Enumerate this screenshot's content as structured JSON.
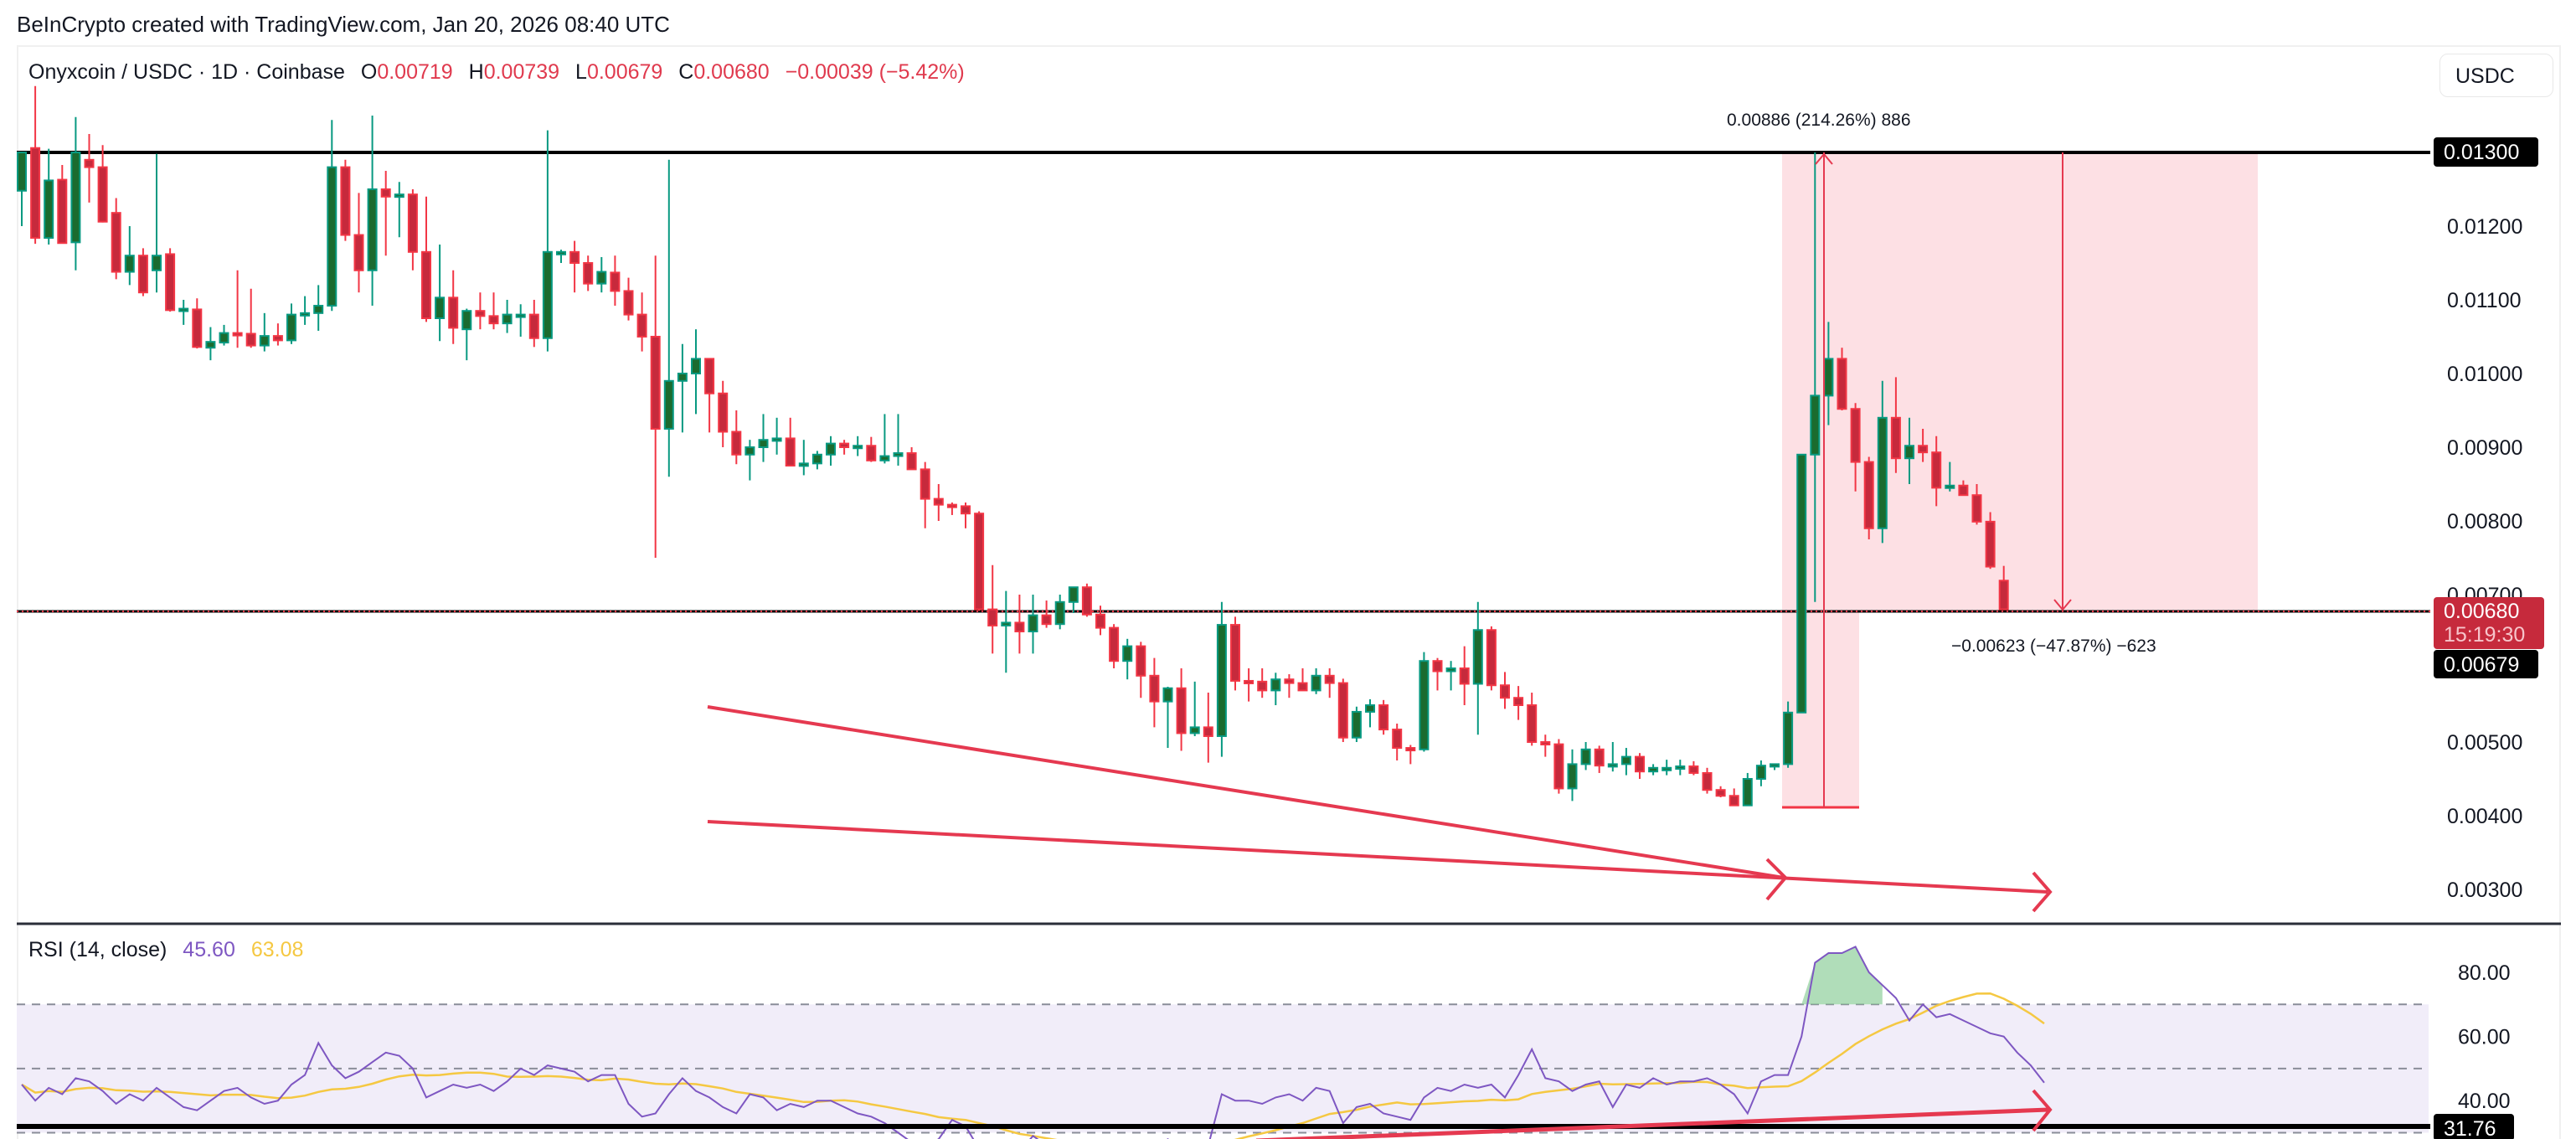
{
  "credit": "BeInCrypto created with TradingView.com, Jan 20, 2026 08:40 UTC",
  "symbol": {
    "title": "Onyxcoin / USDC · 1D · Coinbase",
    "open_label": "O",
    "open": "0.00719",
    "high_label": "H",
    "high": "0.00739",
    "low_label": "L",
    "low": "0.00679",
    "close_label": "C",
    "close": "0.00680",
    "change": "−0.00039 (−5.42%)"
  },
  "currency_button": "USDC",
  "colors": {
    "up": "#1b6b2f",
    "up_border": "#089981",
    "down": "#c62a3c",
    "down_border": "#f23645",
    "annotation": "#e53950",
    "range_fill": "#fde0e4",
    "rsi_line": "#7e57c2",
    "rsi_ma": "#f5c842",
    "rsi_band": "#f1edf9"
  },
  "price_axis": {
    "ticks": [
      "0.01200",
      "0.01100",
      "0.01000",
      "0.00900",
      "0.00800",
      "0.00700",
      "0.00500",
      "0.00400",
      "0.00300"
    ],
    "tick_values": [
      0.012,
      0.011,
      0.01,
      0.009,
      0.008,
      0.007,
      0.005,
      0.004,
      0.003
    ],
    "resistance_label": "0.01300",
    "last_price_label": "0.00680",
    "countdown": "15:19:30",
    "low_label": "0.00679"
  },
  "annotations": {
    "measure_up": "0.00886 (214.26%) 886",
    "measure_down": "−0.00623 (−47.87%) −623"
  },
  "rsi": {
    "label": "RSI (14, close)",
    "value": "45.60",
    "ma_value": "63.08",
    "ticks": [
      "80.00",
      "60.00",
      "40.00"
    ],
    "support_label": "31.76"
  },
  "chart_data": [
    {
      "type": "candlestick",
      "title": "Onyxcoin / USDC · 1D · Coinbase",
      "ylabel": "USDC",
      "ylim": [
        0.0025,
        0.014
      ],
      "horizontal_lines": [
        0.013,
        0.0068
      ],
      "price_range_tool": {
        "from": 0.00414,
        "to": 0.013,
        "change": "0.00886 (214.26%)"
      },
      "price_range_tool_2": {
        "from": 0.013,
        "to": 0.00677,
        "change": "−0.00623 (−47.87%)"
      },
      "trendlines": "two converging downward red lines with arrows (bullish divergence / falling wedge)",
      "candles_ohlc": [
        [
          0.01248,
          0.013,
          0.012,
          0.013
        ],
        [
          0.01306,
          0.0139,
          0.01176,
          0.01184
        ],
        [
          0.01184,
          0.01305,
          0.01175,
          0.01262
        ],
        [
          0.01263,
          0.01283,
          0.01177,
          0.01177
        ],
        [
          0.01178,
          0.01348,
          0.0114,
          0.013
        ],
        [
          0.0129,
          0.01325,
          0.01232,
          0.0128
        ],
        [
          0.0128,
          0.0131,
          0.01205,
          0.01206
        ],
        [
          0.01218,
          0.01238,
          0.01128,
          0.01138
        ],
        [
          0.01138,
          0.012,
          0.0112,
          0.0116
        ],
        [
          0.0116,
          0.0117,
          0.01105,
          0.0111
        ],
        [
          0.0114,
          0.01298,
          0.0111,
          0.0116
        ],
        [
          0.01162,
          0.0117,
          0.01084,
          0.01086
        ],
        [
          0.01086,
          0.011,
          0.01066,
          0.01088
        ],
        [
          0.01087,
          0.01102,
          0.01034,
          0.01036
        ],
        [
          0.01035,
          0.01063,
          0.01018,
          0.01043
        ],
        [
          0.01042,
          0.01066,
          0.01038,
          0.01055
        ],
        [
          0.01055,
          0.0114,
          0.01035,
          0.01054
        ],
        [
          0.01054,
          0.01115,
          0.01035,
          0.01038
        ],
        [
          0.01038,
          0.01082,
          0.0103,
          0.01051
        ],
        [
          0.01051,
          0.01068,
          0.01038,
          0.01045
        ],
        [
          0.01045,
          0.01095,
          0.0104,
          0.0108
        ],
        [
          0.0108,
          0.01105,
          0.01066,
          0.01082
        ],
        [
          0.01082,
          0.0112,
          0.01058,
          0.01092
        ],
        [
          0.01092,
          0.01344,
          0.01085,
          0.0128
        ],
        [
          0.0128,
          0.0129,
          0.0118,
          0.01188
        ],
        [
          0.01188,
          0.01245,
          0.0111,
          0.0114
        ],
        [
          0.0114,
          0.0135,
          0.01092,
          0.0125
        ],
        [
          0.0125,
          0.01275,
          0.0116,
          0.0124
        ],
        [
          0.01242,
          0.0126,
          0.01185,
          0.01243
        ],
        [
          0.01243,
          0.0125,
          0.0114,
          0.01165
        ],
        [
          0.01165,
          0.0124,
          0.0107,
          0.01075
        ],
        [
          0.01075,
          0.01175,
          0.01044,
          0.01103
        ],
        [
          0.01103,
          0.0114,
          0.0104,
          0.01062
        ],
        [
          0.0106,
          0.01088,
          0.01018,
          0.01085
        ],
        [
          0.01085,
          0.0111,
          0.0106,
          0.01078
        ],
        [
          0.01078,
          0.0111,
          0.0106,
          0.01068
        ],
        [
          0.01068,
          0.011,
          0.01055,
          0.0108
        ],
        [
          0.0108,
          0.01094,
          0.0105,
          0.0108
        ],
        [
          0.0108,
          0.011,
          0.01036,
          0.01048
        ],
        [
          0.01048,
          0.0133,
          0.0103,
          0.01165
        ],
        [
          0.01165,
          0.01168,
          0.0115,
          0.01165
        ],
        [
          0.01165,
          0.0118,
          0.0111,
          0.0115
        ],
        [
          0.0115,
          0.0116,
          0.01112,
          0.01122
        ],
        [
          0.01122,
          0.01158,
          0.0111,
          0.01138
        ],
        [
          0.01137,
          0.0116,
          0.01092,
          0.01112
        ],
        [
          0.01112,
          0.0113,
          0.01072,
          0.0108
        ],
        [
          0.0108,
          0.0111,
          0.0103,
          0.0105
        ],
        [
          0.0105,
          0.0116,
          0.0075,
          0.00925
        ],
        [
          0.00925,
          0.0129,
          0.0086,
          0.0099
        ],
        [
          0.0099,
          0.0104,
          0.0092,
          0.01
        ],
        [
          0.01,
          0.0106,
          0.00945,
          0.0102
        ],
        [
          0.0102,
          0.0102,
          0.0092,
          0.00973
        ],
        [
          0.00973,
          0.0099,
          0.009,
          0.00921
        ],
        [
          0.00921,
          0.0095,
          0.00877,
          0.0089
        ],
        [
          0.0089,
          0.0091,
          0.00855,
          0.009
        ],
        [
          0.009,
          0.00945,
          0.0088,
          0.0091
        ],
        [
          0.0091,
          0.0094,
          0.0089,
          0.00912
        ],
        [
          0.00912,
          0.0094,
          0.00874,
          0.00875
        ],
        [
          0.00875,
          0.0091,
          0.00862,
          0.00878
        ],
        [
          0.00878,
          0.00895,
          0.0087,
          0.0089
        ],
        [
          0.0089,
          0.00915,
          0.00875,
          0.00905
        ],
        [
          0.00905,
          0.0091,
          0.0089,
          0.009
        ],
        [
          0.009,
          0.00915,
          0.00888,
          0.00902
        ],
        [
          0.00902,
          0.00914,
          0.0088,
          0.00882
        ],
        [
          0.00882,
          0.00945,
          0.00878,
          0.00888
        ],
        [
          0.00888,
          0.00945,
          0.00875,
          0.00892
        ],
        [
          0.00892,
          0.009,
          0.0087,
          0.0087
        ],
        [
          0.0087,
          0.0088,
          0.0079,
          0.0083
        ],
        [
          0.0083,
          0.0085,
          0.008,
          0.00822
        ],
        [
          0.00822,
          0.00825,
          0.00808,
          0.0082
        ],
        [
          0.0082,
          0.00825,
          0.0079,
          0.0081
        ],
        [
          0.0081,
          0.00813,
          0.00678,
          0.0068
        ],
        [
          0.0068,
          0.0074,
          0.0062,
          0.00658
        ],
        [
          0.00658,
          0.00705,
          0.00594,
          0.00662
        ],
        [
          0.00662,
          0.007,
          0.0062,
          0.0065
        ],
        [
          0.0065,
          0.007,
          0.0062,
          0.00672
        ],
        [
          0.00672,
          0.00692,
          0.00655,
          0.0066
        ],
        [
          0.0066,
          0.007,
          0.00653,
          0.0069
        ],
        [
          0.0069,
          0.0071,
          0.00675,
          0.0071
        ],
        [
          0.0071,
          0.00715,
          0.0067,
          0.00673
        ],
        [
          0.00673,
          0.00685,
          0.00645,
          0.00655
        ],
        [
          0.00655,
          0.0066,
          0.006,
          0.0061
        ],
        [
          0.0061,
          0.0064,
          0.00585,
          0.0063
        ],
        [
          0.0063,
          0.00636,
          0.0056,
          0.0059
        ],
        [
          0.0059,
          0.00614,
          0.0052,
          0.00555
        ],
        [
          0.00555,
          0.00575,
          0.00492,
          0.00573
        ],
        [
          0.00573,
          0.006,
          0.00488,
          0.00512
        ],
        [
          0.00512,
          0.00582,
          0.00508,
          0.0052
        ],
        [
          0.0052,
          0.00567,
          0.00472,
          0.00508
        ],
        [
          0.00508,
          0.0069,
          0.0048,
          0.00659
        ],
        [
          0.00659,
          0.0067,
          0.0057,
          0.00583
        ],
        [
          0.00583,
          0.006,
          0.00555,
          0.00582
        ],
        [
          0.00582,
          0.006,
          0.0056,
          0.0057
        ],
        [
          0.0057,
          0.00594,
          0.0055,
          0.00585
        ],
        [
          0.00585,
          0.00592,
          0.0056,
          0.0058
        ],
        [
          0.0058,
          0.006,
          0.0057,
          0.0057
        ],
        [
          0.0057,
          0.006,
          0.00565,
          0.0059
        ],
        [
          0.0059,
          0.006,
          0.0056,
          0.0058
        ],
        [
          0.0058,
          0.00586,
          0.005,
          0.00506
        ],
        [
          0.00506,
          0.00548,
          0.005,
          0.00541
        ],
        [
          0.00541,
          0.00558,
          0.0052,
          0.0055
        ],
        [
          0.0055,
          0.00557,
          0.0051,
          0.00517
        ],
        [
          0.00517,
          0.00525,
          0.00475,
          0.00492
        ],
        [
          0.00492,
          0.00496,
          0.0047,
          0.0049
        ],
        [
          0.0049,
          0.00622,
          0.00487,
          0.0061
        ],
        [
          0.0061,
          0.00614,
          0.0057,
          0.00596
        ],
        [
          0.00596,
          0.0061,
          0.0057,
          0.006
        ],
        [
          0.006,
          0.0063,
          0.0055,
          0.00579
        ],
        [
          0.00579,
          0.0069,
          0.0051,
          0.00652
        ],
        [
          0.00652,
          0.00657,
          0.0057,
          0.00577
        ],
        [
          0.00577,
          0.00595,
          0.00545,
          0.0056
        ],
        [
          0.0056,
          0.00576,
          0.0053,
          0.0055
        ],
        [
          0.0055,
          0.00567,
          0.00495,
          0.005
        ],
        [
          0.005,
          0.0051,
          0.0048,
          0.00497
        ],
        [
          0.00497,
          0.00504,
          0.0043,
          0.00437
        ],
        [
          0.00437,
          0.0049,
          0.0042,
          0.0047
        ],
        [
          0.0047,
          0.005,
          0.00462,
          0.0049
        ],
        [
          0.0049,
          0.00495,
          0.00458,
          0.00468
        ],
        [
          0.00468,
          0.005,
          0.0046,
          0.0047
        ],
        [
          0.0047,
          0.00492,
          0.00455,
          0.0048
        ],
        [
          0.0048,
          0.00485,
          0.0045,
          0.0046
        ],
        [
          0.0046,
          0.0047,
          0.00455,
          0.00465
        ],
        [
          0.00465,
          0.00476,
          0.00455,
          0.00465
        ],
        [
          0.00465,
          0.00476,
          0.00455,
          0.00467
        ],
        [
          0.00467,
          0.00474,
          0.00455,
          0.00458
        ],
        [
          0.00458,
          0.00465,
          0.0043,
          0.00435
        ],
        [
          0.00435,
          0.0044,
          0.00425,
          0.00427
        ],
        [
          0.00427,
          0.00437,
          0.00414,
          0.00414
        ],
        [
          0.00414,
          0.00458,
          0.00414,
          0.0045
        ],
        [
          0.0045,
          0.00475,
          0.0044,
          0.00468
        ],
        [
          0.00468,
          0.0047,
          0.00462,
          0.0047
        ],
        [
          0.0047,
          0.00555,
          0.00465,
          0.0054
        ],
        [
          0.0054,
          0.0066,
          0.0054,
          0.0089
        ],
        [
          0.0089,
          0.013,
          0.0069,
          0.0097
        ],
        [
          0.0097,
          0.0107,
          0.0093,
          0.0102
        ],
        [
          0.0102,
          0.01035,
          0.0095,
          0.00952
        ],
        [
          0.00952,
          0.0096,
          0.0084,
          0.0088
        ],
        [
          0.0088,
          0.00887,
          0.00775,
          0.0079
        ],
        [
          0.0079,
          0.0099,
          0.0077,
          0.0094
        ],
        [
          0.0094,
          0.00995,
          0.00865,
          0.00885
        ],
        [
          0.00885,
          0.0094,
          0.0085,
          0.00902
        ],
        [
          0.00902,
          0.00925,
          0.0088,
          0.00893
        ],
        [
          0.00893,
          0.00915,
          0.0082,
          0.00845
        ],
        [
          0.00845,
          0.0088,
          0.0084,
          0.00848
        ],
        [
          0.00848,
          0.00855,
          0.00835,
          0.00835
        ],
        [
          0.00835,
          0.0085,
          0.00795,
          0.00799
        ],
        [
          0.00799,
          0.00812,
          0.00735,
          0.00738
        ],
        [
          0.00719,
          0.00739,
          0.00679,
          0.0068
        ]
      ]
    },
    {
      "type": "line",
      "title": "RSI (14, close)",
      "ylim": [
        25,
        90
      ],
      "bands": {
        "upper": 70,
        "middle": 50,
        "lower": 30
      },
      "support_line": 31.76,
      "series": [
        {
          "name": "RSI",
          "last": 45.6
        },
        {
          "name": "RSI-based MA",
          "last": 63.08
        }
      ]
    }
  ]
}
